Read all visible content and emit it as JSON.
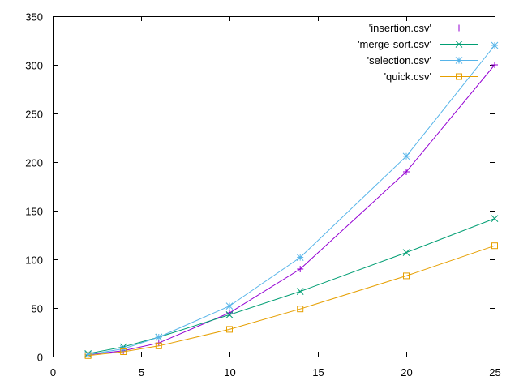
{
  "chart_data": {
    "type": "line",
    "title": "",
    "xlabel": "",
    "ylabel": "",
    "xlim": [
      0,
      25
    ],
    "ylim": [
      0,
      350
    ],
    "x_ticks": [
      "0",
      "5",
      "10",
      "15",
      "20",
      "25"
    ],
    "y_ticks": [
      "0",
      "50",
      "100",
      "150",
      "200",
      "250",
      "300",
      "350"
    ],
    "grid": false,
    "legend_position": "top-right",
    "series": [
      {
        "name": "'insertion.csv'",
        "color": "#9400d3",
        "marker": "plus",
        "x": [
          2,
          4,
          6,
          10,
          14,
          20,
          25
        ],
        "y": [
          2,
          6,
          14,
          45,
          90,
          190,
          300
        ]
      },
      {
        "name": "'merge-sort.csv'",
        "color": "#009e73",
        "marker": "cross",
        "x": [
          2,
          4,
          6,
          10,
          14,
          20,
          25
        ],
        "y": [
          3,
          10,
          20,
          43,
          67,
          107,
          142
        ]
      },
      {
        "name": "'selection.csv'",
        "color": "#56b4e9",
        "marker": "star",
        "x": [
          2,
          4,
          6,
          10,
          14,
          20,
          25
        ],
        "y": [
          2,
          8,
          20,
          52,
          102,
          206,
          320
        ]
      },
      {
        "name": "'quick.csv'",
        "color": "#e69f00",
        "marker": "square",
        "x": [
          2,
          4,
          6,
          10,
          14,
          20,
          25
        ],
        "y": [
          1,
          5,
          11,
          28,
          49,
          83,
          114
        ]
      }
    ]
  }
}
